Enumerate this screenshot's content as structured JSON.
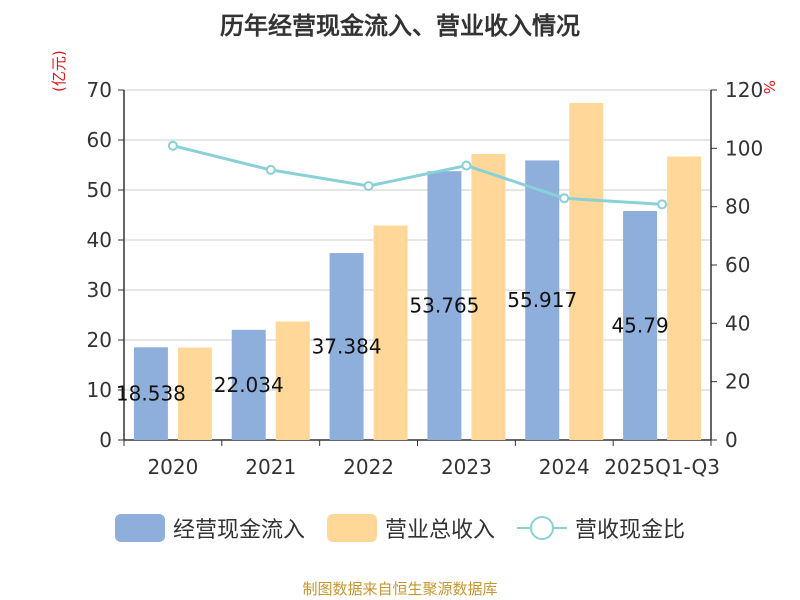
{
  "chart_data": {
    "type": "bar",
    "title": "历年经营现金流入、营业收入情况",
    "left_unit": "(亿元)",
    "right_unit": "%",
    "categories": [
      "2020",
      "2021",
      "2022",
      "2023",
      "2024",
      "2025Q1-Q3"
    ],
    "left_ylim": [
      0,
      70
    ],
    "left_ticks": [
      0,
      10,
      20,
      30,
      40,
      50,
      60,
      70
    ],
    "right_ylim": [
      0,
      120
    ],
    "right_ticks": [
      0,
      20,
      40,
      60,
      80,
      100,
      120
    ],
    "series": [
      {
        "name": "经营现金流入",
        "type": "bar",
        "axis": "left",
        "color": "#8eaedc",
        "values": [
          18.538,
          22.034,
          37.384,
          53.765,
          55.917,
          45.79
        ],
        "labels": [
          "18.538",
          "22.034",
          "37.384",
          "53.765",
          "55.917",
          "45.79"
        ]
      },
      {
        "name": "营业总收入",
        "type": "bar",
        "axis": "left",
        "color": "#ffd899",
        "values": [
          18.5,
          23.7,
          42.9,
          57.2,
          67.4,
          56.7
        ]
      },
      {
        "name": "营收现金比",
        "type": "line",
        "axis": "right",
        "color": "#89d1d6",
        "values": [
          100.9,
          92.6,
          87.1,
          94.1,
          82.9,
          80.8
        ]
      }
    ],
    "grid": true,
    "legend_position": "bottom"
  },
  "source": "制图数据来自恒生聚源数据库"
}
